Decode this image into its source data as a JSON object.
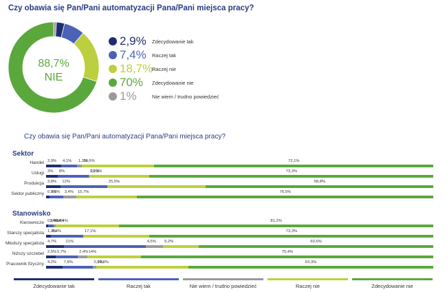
{
  "colors": {
    "zdecydowanie_tak": "#1f2e6e",
    "raczej_tak": "#4b62b7",
    "nie_wiem": "#9a9a9a",
    "raczej_nie": "#bccf3e",
    "zdecydowanie_nie": "#5aa83c"
  },
  "chart_data": [
    {
      "type": "pie",
      "title": "Czy obawia się Pan/Pani automatyzacji Pana/Pani miejsca pracy?",
      "center_value": "88,7%",
      "center_label": "NIE",
      "slices": [
        {
          "label": "Zdecydowanie tak",
          "value": 2.9,
          "display": "2,9%",
          "color_key": "zdecydowanie_tak"
        },
        {
          "label": "Raczej tak",
          "value": 7.4,
          "display": "7,4%",
          "color_key": "raczej_tak"
        },
        {
          "label": "Raczej nie",
          "value": 18.7,
          "display": "18,7%",
          "color_key": "raczej_nie"
        },
        {
          "label": "Zdecydowanie nie",
          "value": 70,
          "display": "70%",
          "color_key": "zdecydowanie_nie"
        },
        {
          "label": "Nie wiem / trudno powiedzieć",
          "value": 1,
          "display": "1%",
          "color_key": "nie_wiem"
        }
      ]
    },
    {
      "type": "bar",
      "orientation": "horizontal-stacked",
      "title": "Czy obawia się Pan/Pani automatyzacji Pana/Pani miejsca pracy?",
      "series_order": [
        "Zdecydowanie tak",
        "Raczej tak",
        "Nie wiem / trudno powiedzieć",
        "Raczej nie",
        "Zdecydowanie nie"
      ],
      "series_keys": [
        "zdecydowanie_tak",
        "raczej_tak",
        "nie_wiem",
        "raczej_nie",
        "zdecydowanie_nie"
      ],
      "groups": [
        {
          "name": "Sektor",
          "rows": [
            {
              "label": "Handel",
              "values": [
                3.9,
                4.1,
                1.3,
                18.6,
                72.1
              ],
              "labels": [
                "3,9%",
                "4,1%",
                "1,3%",
                "18,6%",
                "72,1%"
              ]
            },
            {
              "label": "Usługi",
              "values": [
                3,
                8,
                0.2,
                15.5,
                73.3
              ],
              "labels": [
                "3%",
                "8%",
                "0,2%",
                "15,5%",
                "73,3%"
              ]
            },
            {
              "label": "Produkcja",
              "values": [
                3.8,
                12,
                0,
                25.5,
                58.8
              ],
              "labels": [
                "3,8%",
                "12%",
                "",
                "25,5%",
                "58,8%"
              ]
            },
            {
              "label": "Sektor publiczny",
              "values": [
                0.9,
                3.5,
                3.4,
                15.7,
                76.5
              ],
              "labels": [
                "0,9%",
                "3,5%",
                "3,4%",
                "15,7%",
                "76,5%"
              ]
            }
          ]
        },
        {
          "name": "Stanowisko",
          "rows": [
            {
              "label": "Kierownicze",
              "values": [
                0.6,
                1.4,
                0.4,
                16.4,
                81.2
              ],
              "labels": [
                "0,6%",
                "1,4%",
                "0,4%",
                "16,4%",
                "81,2%"
              ]
            },
            {
              "label": "Starszy specjalista",
              "values": [
                1.2,
                8.4,
                0,
                17.1,
                73.3
              ],
              "labels": [
                "1,2%",
                "8,4%",
                "",
                "17,1%",
                "73,3%"
              ]
            },
            {
              "label": "Młodszy specjalista",
              "values": [
                4.7,
                21,
                4.5,
                9.2,
                60.6
              ],
              "labels": [
                "4,7%",
                "21%",
                "4,5%",
                "9,2%",
                "60,6%"
              ]
            },
            {
              "label": "Niższy szczebel",
              "values": [
                2.5,
                5.7,
                2.4,
                14,
                75.4
              ],
              "labels": [
                "2,5%",
                "5,7%",
                "2,4%",
                "14%",
                "75,4%"
              ]
            },
            {
              "label": "Pracownik fizyczny",
              "values": [
                4.2,
                7.8,
                0.9,
                23.8,
                63.3
              ],
              "labels": [
                "4,2%",
                "7,8%",
                "0,9%",
                "23,8%",
                "63,3%"
              ]
            }
          ]
        }
      ],
      "legend": [
        "Zdecydowanie tak",
        "Raczej tak",
        "Nie wiem / trudno powiedzieć",
        "Raczej nie",
        "Zdecydowanie nie"
      ]
    }
  ]
}
